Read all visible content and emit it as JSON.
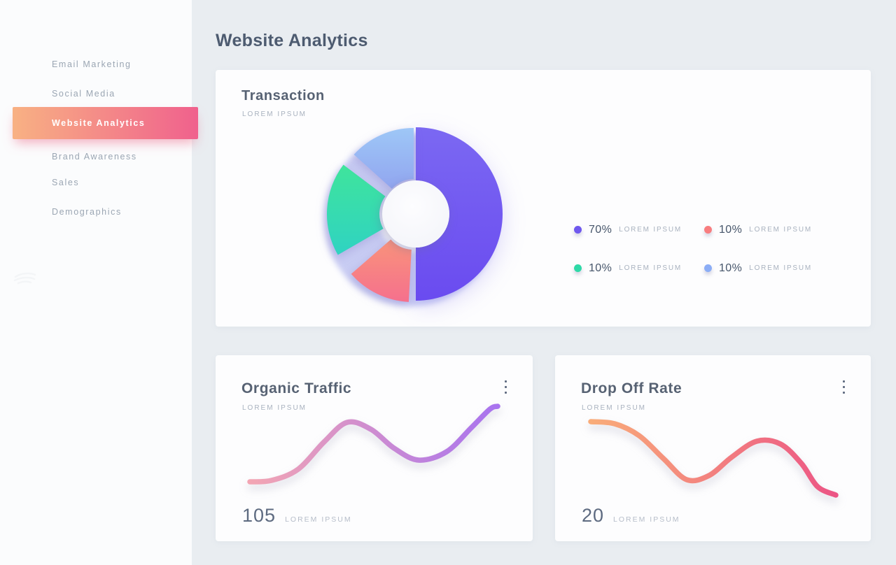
{
  "page": {
    "title": "Website Analytics",
    "background": "#e9edf1"
  },
  "sidebar": {
    "items": [
      {
        "label": "Email Marketing",
        "active": false
      },
      {
        "label": "Social Media",
        "active": false
      },
      {
        "label": "Website Analytics",
        "active": true
      },
      {
        "label": "Brand Awareness",
        "active": false
      },
      {
        "label": "Sales",
        "active": false
      },
      {
        "label": "Demographics",
        "active": false
      }
    ],
    "active_gradient": {
      "from": "#f8b183",
      "to": "#f0618d"
    }
  },
  "transaction_card": {
    "title": "Transaction",
    "subtitle": "LOREM IPSUM",
    "legend": [
      {
        "value": "70%",
        "label": "LOREM IPSUM",
        "color": "#6f58ee"
      },
      {
        "value": "10%",
        "label": "LOREM IPSUM",
        "color": "#f87d7f"
      },
      {
        "value": "10%",
        "label": "LOREM IPSUM",
        "color": "#2ed9a7"
      },
      {
        "value": "10%",
        "label": "LOREM IPSUM",
        "color": "#8badf6"
      }
    ]
  },
  "organic_card": {
    "title": "Organic Traffic",
    "subtitle": "LOREM IPSUM",
    "value": "105",
    "value_label": "LOREM IPSUM",
    "menu_icon": "kebab-vertical"
  },
  "dropoff_card": {
    "title": "Drop Off Rate",
    "subtitle": "LOREM IPSUM",
    "value": "20",
    "value_label": "LOREM IPSUM",
    "menu_icon": "kebab-vertical"
  },
  "chart_data": [
    {
      "type": "pie",
      "variant": "donut-exploded",
      "title": "Transaction",
      "values": [
        70,
        10,
        10,
        10
      ],
      "labels": [
        "LOREM IPSUM",
        "LOREM IPSUM",
        "LOREM IPSUM",
        "LOREM IPSUM"
      ],
      "colors": [
        "#7160f0",
        "#f7808b",
        "#36dcae",
        "#98b8f3"
      ],
      "legend_position": "right",
      "shadow_ring_color": "#8a92e6",
      "hole_colors": [
        "#fdfdff",
        "#f3f4f9"
      ],
      "segments": [
        {
          "pct": 70,
          "start": 0,
          "end": 180,
          "rOut": 124,
          "rIn": 48,
          "offset": [
            0,
            0
          ],
          "color_from": "#7b68f2",
          "color_to": "#6a4bf0"
        },
        {
          "pct": 10,
          "start": 183,
          "end": 229,
          "rOut": 117,
          "rIn": 42,
          "offset": [
            -4,
            9
          ],
          "color_from": "#f9937b",
          "color_to": "#f5708d"
        },
        {
          "pct": 10,
          "start": 240,
          "end": 307,
          "rOut": 117,
          "rIn": 42,
          "offset": [
            -10,
            0
          ],
          "color_from": "#3fe49c",
          "color_to": "#2fd3c2"
        },
        {
          "pct": 10,
          "start": 312,
          "end": 360,
          "rOut": 115,
          "rIn": 42,
          "offset": [
            -3,
            -8
          ],
          "color_from": "#9ec7f7",
          "color_to": "#91a5ef"
        }
      ]
    },
    {
      "type": "line",
      "title": "Organic Traffic",
      "current_value": 105,
      "gradient": [
        "#f3a5b3",
        "#a873ef"
      ],
      "points": [
        [
          49,
          181
        ],
        [
          80,
          179
        ],
        [
          118,
          163
        ],
        [
          155,
          124
        ],
        [
          188,
          96
        ],
        [
          222,
          106
        ],
        [
          255,
          133
        ],
        [
          290,
          150
        ],
        [
          330,
          138
        ],
        [
          365,
          104
        ],
        [
          392,
          77
        ],
        [
          403,
          73
        ]
      ]
    },
    {
      "type": "line",
      "title": "Drop Off Rate",
      "current_value": 20,
      "gradient": [
        "#f9ac79",
        "#ec5585"
      ],
      "points": [
        [
          51,
          95
        ],
        [
          85,
          98
        ],
        [
          120,
          115
        ],
        [
          155,
          148
        ],
        [
          188,
          178
        ],
        [
          220,
          172
        ],
        [
          252,
          146
        ],
        [
          288,
          123
        ],
        [
          322,
          127
        ],
        [
          352,
          155
        ],
        [
          375,
          188
        ],
        [
          401,
          200
        ]
      ]
    }
  ]
}
